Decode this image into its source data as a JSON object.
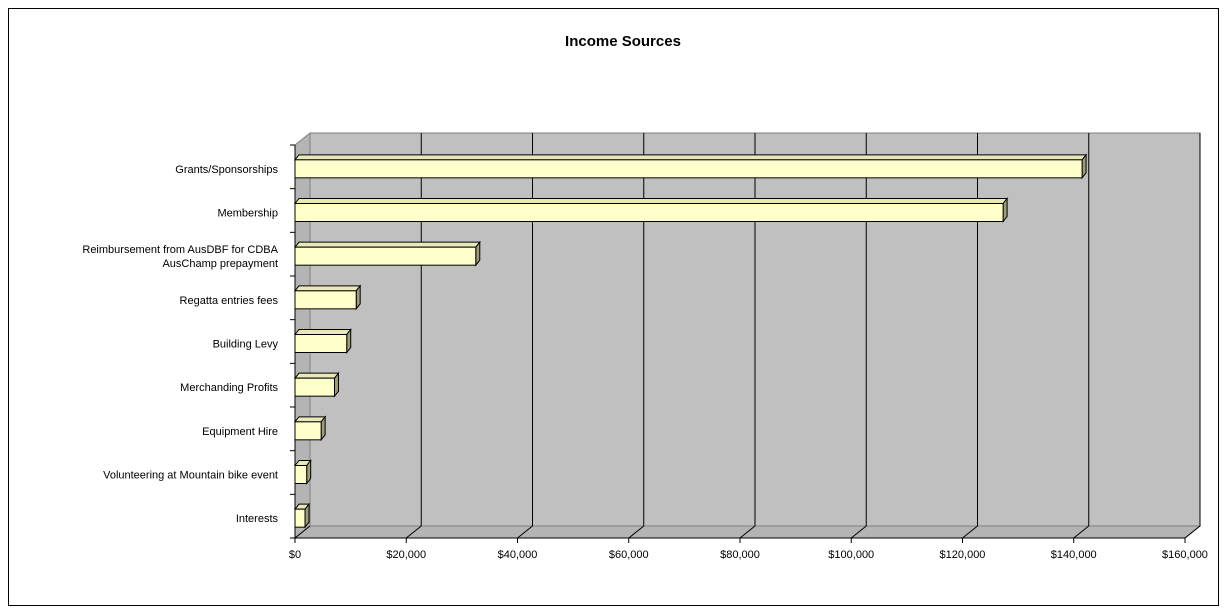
{
  "chart_data": {
    "type": "bar",
    "orientation": "horizontal",
    "style": "3d-clustered-bar",
    "title": "Income Sources",
    "xlabel": "",
    "ylabel": "",
    "categories": [
      [
        "Grants/Sponsorships"
      ],
      [
        "Membership"
      ],
      [
        "Reimbursement from AusDBF for CDBA",
        "AusChamp prepayment"
      ],
      [
        "Regatta entries fees"
      ],
      [
        "Building Levy"
      ],
      [
        "Merchanding Profits"
      ],
      [
        "Equipment Hire"
      ],
      [
        "Volunteering at Mountain bike event"
      ],
      [
        "Interests"
      ]
    ],
    "values": [
      141500,
      127300,
      32500,
      11000,
      9300,
      7100,
      4700,
      2100,
      1800
    ],
    "xlim": [
      0,
      160000
    ],
    "xticks": [
      0,
      20000,
      40000,
      60000,
      80000,
      100000,
      120000,
      140000,
      160000
    ],
    "xtick_labels": [
      "$0",
      "$20,000",
      "$40,000",
      "$60,000",
      "$80,000",
      "$100,000",
      "$120,000",
      "$140,000",
      "$160,000"
    ],
    "grid": true,
    "legend": "none",
    "colors": {
      "bar_front": "#FFFFCC",
      "bar_top": "#E8E8B8",
      "bar_side": "#9C9C7A",
      "wall": "#C0C0C0",
      "floor": "#B4B4B4",
      "outline": "#000000"
    }
  }
}
